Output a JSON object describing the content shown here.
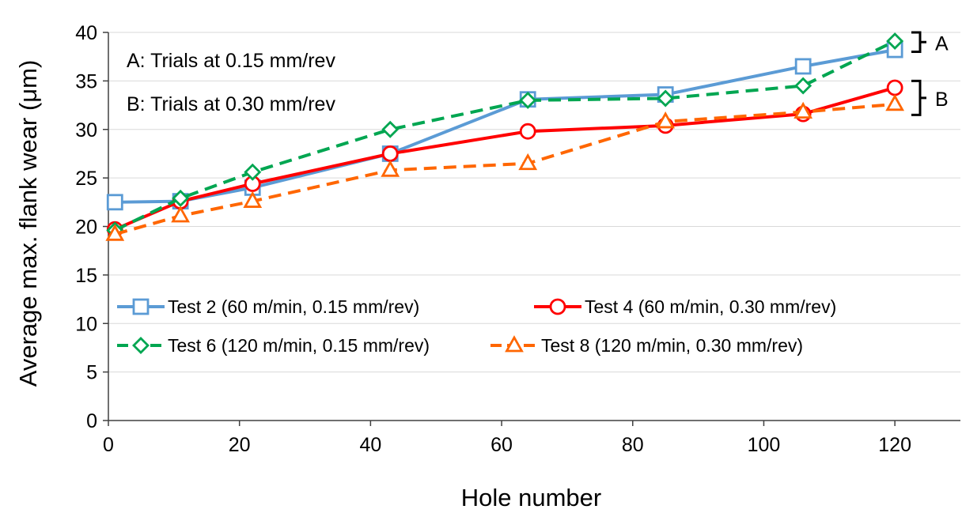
{
  "chart_data": {
    "type": "line",
    "xlabel": "Hole number",
    "ylabel": "Average max. flank wear (μm)",
    "xlim": [
      0,
      130
    ],
    "ylim": [
      0,
      40
    ],
    "xticks": [
      0,
      20,
      40,
      60,
      80,
      100,
      120
    ],
    "yticks": [
      0,
      5,
      10,
      15,
      20,
      25,
      30,
      35,
      40
    ],
    "grid": "horizontal",
    "legend": "lower-center, inside plot",
    "series": [
      {
        "name": "Test 2 (60 m/min, 0.15 mm/rev)",
        "color": "#5b9bd5",
        "marker": "square",
        "dash": "solid",
        "x": [
          1,
          11,
          22,
          43,
          64,
          85,
          106,
          120
        ],
        "values": [
          22.5,
          22.6,
          24.0,
          27.5,
          33.1,
          33.6,
          36.5,
          38.2
        ]
      },
      {
        "name": "Test 4 (60 m/min, 0.30 mm/rev)",
        "color": "#ff0000",
        "marker": "circle",
        "dash": "solid",
        "x": [
          1,
          11,
          22,
          43,
          64,
          85,
          106,
          120
        ],
        "values": [
          19.7,
          22.6,
          24.4,
          27.5,
          29.8,
          30.4,
          31.6,
          34.3
        ]
      },
      {
        "name": "Test 6 (120 m/min, 0.15 mm/rev)",
        "color": "#00a651",
        "marker": "diamond",
        "dash": "dashed",
        "x": [
          1,
          11,
          22,
          43,
          64,
          85,
          106,
          120
        ],
        "values": [
          19.6,
          22.9,
          25.6,
          30.0,
          33.0,
          33.2,
          34.5,
          39.1
        ]
      },
      {
        "name": "Test 8 (120 m/min, 0.30 mm/rev)",
        "color": "#ff6600",
        "marker": "triangle",
        "dash": "dashed",
        "x": [
          1,
          11,
          22,
          43,
          64,
          85,
          106,
          120
        ],
        "values": [
          19.2,
          21.1,
          22.6,
          25.8,
          26.5,
          30.8,
          31.8,
          32.6
        ]
      }
    ],
    "annotations": [
      "A: Trials at 0.15 mm/rev",
      "B: Trials at 0.30 mm/rev"
    ],
    "brackets": [
      {
        "label": "A",
        "range": [
          38.0,
          40.0
        ]
      },
      {
        "label": "B",
        "range": [
          31.5,
          35.0
        ]
      }
    ]
  }
}
